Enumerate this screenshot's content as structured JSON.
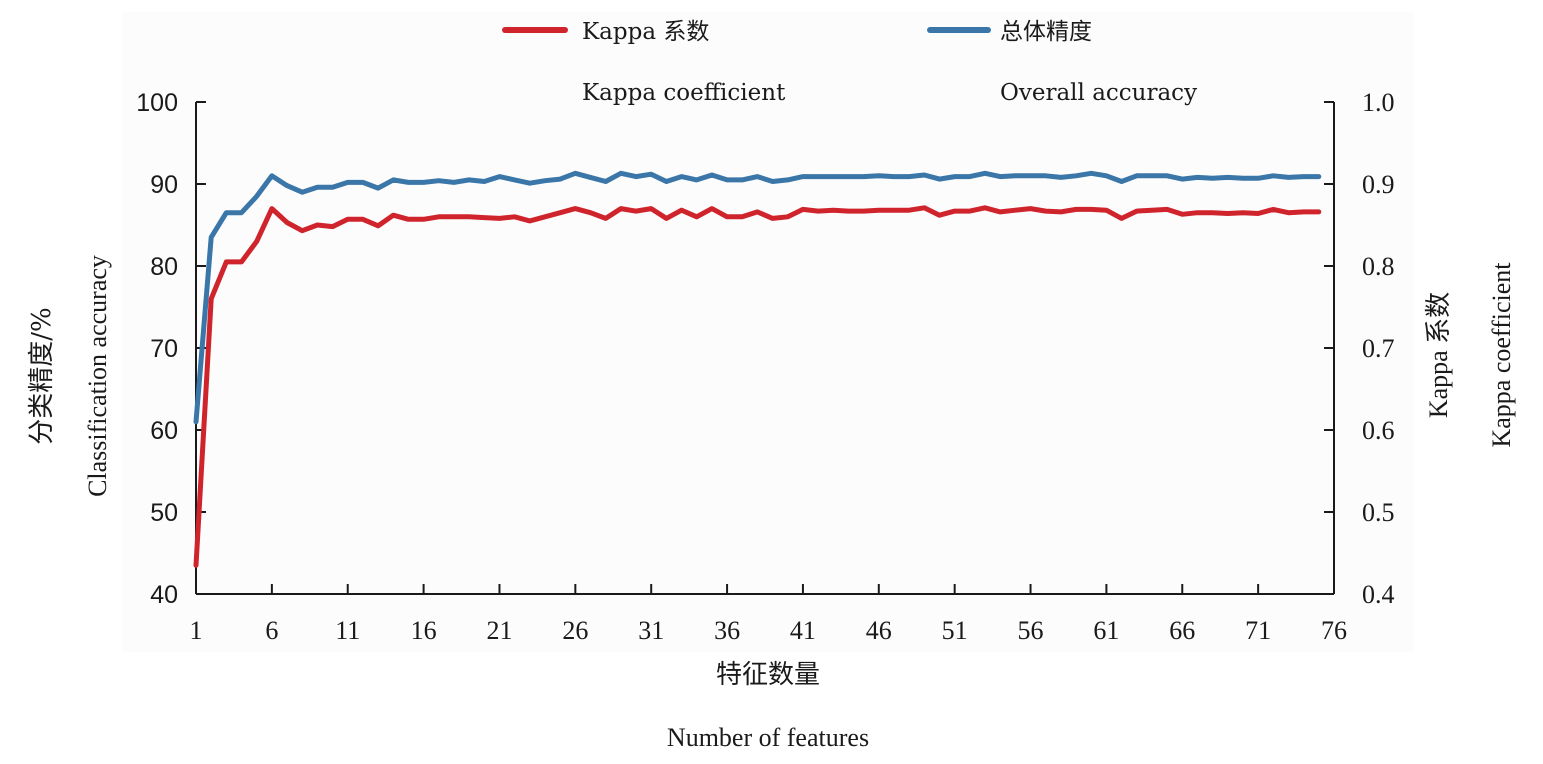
{
  "chart_data": {
    "type": "line",
    "xlabel_cn": "特征数量",
    "xlabel_en": "Number of features",
    "ylabel_left_cn": "分类精度/%",
    "ylabel_left_en": "Classification accuracy",
    "ylabel_right_cn": "Kappa 系数",
    "ylabel_right_en": "Kappa coefficient",
    "x_ticks": [
      "1",
      "6",
      "11",
      "16",
      "21",
      "26",
      "31",
      "36",
      "41",
      "46",
      "51",
      "56",
      "61",
      "66",
      "71",
      "76"
    ],
    "y_left_ticks": [
      "40",
      "50",
      "60",
      "70",
      "80",
      "90",
      "100"
    ],
    "y_right_ticks": [
      "0.4",
      "0.5",
      "0.6",
      "0.7",
      "0.8",
      "0.9",
      "1.0"
    ],
    "xlim": [
      1,
      76
    ],
    "ylim_left": [
      40,
      100
    ],
    "ylim_right": [
      0.4,
      1.0
    ],
    "legend": [
      {
        "label_cn": "Kappa 系数",
        "label_en": "Kappa coefficient",
        "color": "#d0242d"
      },
      {
        "label_cn": "总体精度",
        "label_en": "Overall accuracy",
        "color": "#3a76a8"
      }
    ],
    "series": [
      {
        "name": "总体精度",
        "axis": "left",
        "color": "#3a76a8",
        "x": [
          1,
          2,
          3,
          4,
          5,
          6,
          7,
          8,
          9,
          10,
          11,
          12,
          13,
          14,
          15,
          16,
          17,
          18,
          19,
          20,
          21,
          22,
          23,
          24,
          25,
          26,
          27,
          28,
          29,
          30,
          31,
          32,
          33,
          34,
          35,
          36,
          37,
          38,
          39,
          40,
          41,
          42,
          43,
          44,
          45,
          46,
          47,
          48,
          49,
          50,
          51,
          52,
          53,
          54,
          55,
          56,
          57,
          58,
          59,
          60,
          61,
          62,
          63,
          64,
          65,
          66,
          67,
          68,
          69,
          70,
          71,
          72,
          73,
          74,
          75
        ],
        "values": [
          61,
          83.5,
          86.5,
          86.5,
          88.5,
          91,
          89.8,
          89,
          89.6,
          89.6,
          90.2,
          90.2,
          89.5,
          90.5,
          90.2,
          90.2,
          90.4,
          90.2,
          90.5,
          90.3,
          90.9,
          90.5,
          90.1,
          90.4,
          90.6,
          91.3,
          90.8,
          90.3,
          91.3,
          90.9,
          91.2,
          90.3,
          90.9,
          90.5,
          91.1,
          90.5,
          90.5,
          90.9,
          90.3,
          90.5,
          90.9,
          90.9,
          90.9,
          90.9,
          90.9,
          91,
          90.9,
          90.9,
          91.1,
          90.6,
          90.9,
          90.9,
          91.3,
          90.9,
          91,
          91,
          91,
          90.8,
          91,
          91.3,
          91,
          90.3,
          91,
          91,
          91,
          90.6,
          90.8,
          90.7,
          90.8,
          90.7,
          90.7,
          91,
          90.8,
          90.9,
          90.9
        ]
      },
      {
        "name": "Kappa 系数",
        "axis": "right",
        "color": "#d0242d",
        "x": [
          1,
          2,
          3,
          4,
          5,
          6,
          7,
          8,
          9,
          10,
          11,
          12,
          13,
          14,
          15,
          16,
          17,
          18,
          19,
          20,
          21,
          22,
          23,
          24,
          25,
          26,
          27,
          28,
          29,
          30,
          31,
          32,
          33,
          34,
          35,
          36,
          37,
          38,
          39,
          40,
          41,
          42,
          43,
          44,
          45,
          46,
          47,
          48,
          49,
          50,
          51,
          52,
          53,
          54,
          55,
          56,
          57,
          58,
          59,
          60,
          61,
          62,
          63,
          64,
          65,
          66,
          67,
          68,
          69,
          70,
          71,
          72,
          73,
          74,
          75
        ],
        "values": [
          0.435,
          0.76,
          0.805,
          0.805,
          0.83,
          0.87,
          0.853,
          0.843,
          0.85,
          0.848,
          0.857,
          0.857,
          0.849,
          0.862,
          0.857,
          0.857,
          0.86,
          0.86,
          0.86,
          0.859,
          0.858,
          0.86,
          0.855,
          0.86,
          0.865,
          0.87,
          0.865,
          0.858,
          0.87,
          0.867,
          0.87,
          0.858,
          0.868,
          0.86,
          0.87,
          0.86,
          0.86,
          0.866,
          0.858,
          0.86,
          0.869,
          0.867,
          0.868,
          0.867,
          0.867,
          0.868,
          0.868,
          0.868,
          0.871,
          0.862,
          0.867,
          0.867,
          0.871,
          0.866,
          0.868,
          0.87,
          0.867,
          0.866,
          0.869,
          0.869,
          0.868,
          0.858,
          0.867,
          0.868,
          0.869,
          0.863,
          0.865,
          0.865,
          0.864,
          0.865,
          0.864,
          0.869,
          0.865,
          0.866,
          0.866
        ]
      }
    ]
  }
}
